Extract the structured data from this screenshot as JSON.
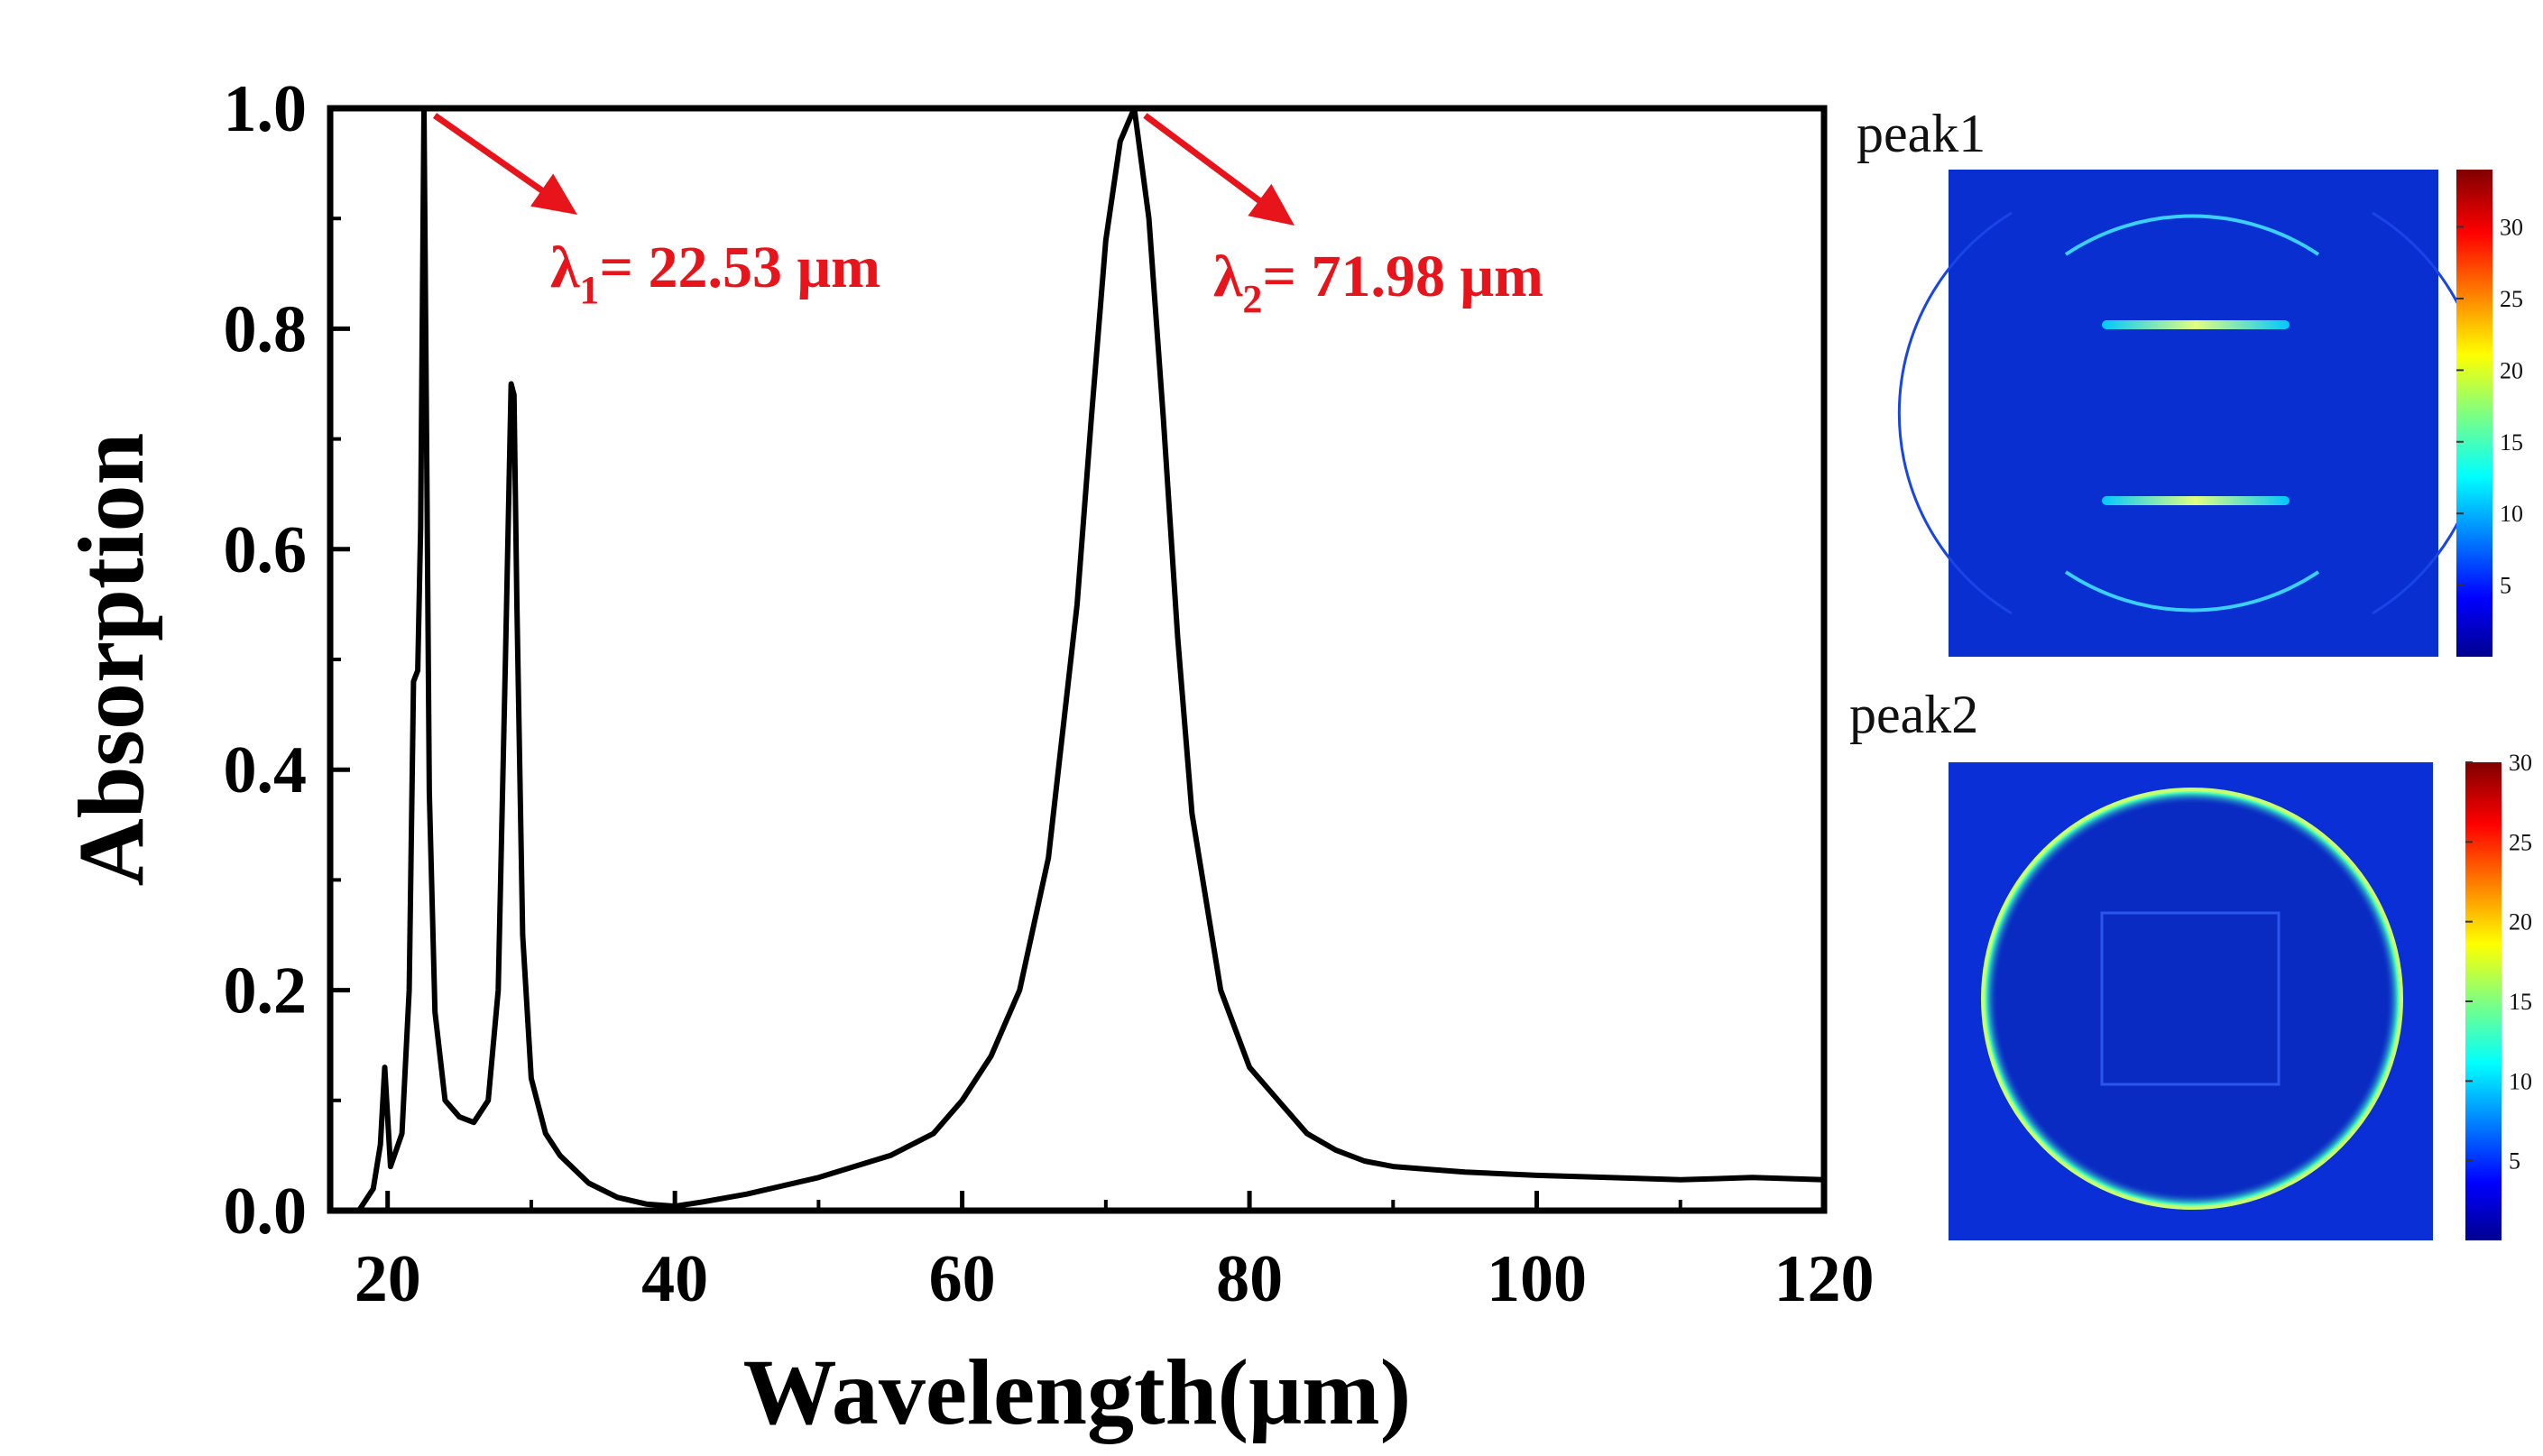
{
  "chart_data": {
    "type": "line",
    "xlabel": "Wavelength(μm)",
    "ylabel": "Absorption",
    "xlim": [
      16,
      120
    ],
    "ylim": [
      0,
      1.0
    ],
    "x_ticks": [
      "20",
      "40",
      "60",
      "80",
      "100",
      "120"
    ],
    "y_ticks": [
      "0.0",
      "0.2",
      "0.4",
      "0.6",
      "0.8",
      "1.0"
    ],
    "grid": false,
    "series": [
      {
        "x": [
          18,
          19,
          19.5,
          19.8,
          20.2,
          21,
          21.5,
          21.8,
          22.1,
          22.3,
          22.53,
          22.7,
          22.9,
          23.3,
          24,
          25,
          26,
          27,
          27.7,
          28.2,
          28.6,
          28.8,
          29,
          29.4,
          30,
          31,
          32,
          34,
          36,
          38,
          40,
          42,
          45,
          50,
          55,
          58,
          60,
          62,
          64,
          66,
          68,
          69,
          70,
          71,
          71.98,
          73,
          74,
          75,
          76,
          78,
          80,
          82,
          84,
          86,
          88,
          90,
          92,
          95,
          100,
          105,
          110,
          115,
          120
        ],
        "y": [
          0.0,
          0.02,
          0.06,
          0.13,
          0.04,
          0.07,
          0.2,
          0.48,
          0.49,
          0.62,
          1.0,
          0.72,
          0.38,
          0.18,
          0.1,
          0.085,
          0.08,
          0.1,
          0.2,
          0.5,
          0.75,
          0.74,
          0.55,
          0.25,
          0.12,
          0.07,
          0.05,
          0.025,
          0.012,
          0.006,
          0.004,
          0.008,
          0.015,
          0.03,
          0.05,
          0.07,
          0.1,
          0.14,
          0.2,
          0.32,
          0.55,
          0.72,
          0.88,
          0.97,
          1.0,
          0.9,
          0.72,
          0.52,
          0.36,
          0.2,
          0.13,
          0.1,
          0.07,
          0.055,
          0.045,
          0.04,
          0.038,
          0.035,
          0.032,
          0.03,
          0.028,
          0.03,
          0.028
        ]
      }
    ],
    "annotations": [
      {
        "symbol": "λ",
        "sub": "1",
        "text": "= 22.53 μm",
        "x": 22.53,
        "y": 1.0
      },
      {
        "symbol": "λ",
        "sub": "2",
        "text": "= 71.98 μm",
        "x": 71.98,
        "y": 1.0
      }
    ],
    "line_color": "#000000",
    "annotation_color": "#e8141b"
  },
  "insets": [
    {
      "title": "peak1",
      "colorbar_ticks": [
        "5",
        "10",
        "15",
        "20",
        "25",
        "30"
      ],
      "colorbar_max": 34
    },
    {
      "title": "peak2",
      "colorbar_ticks": [
        "5",
        "10",
        "15",
        "20",
        "25",
        "30"
      ],
      "colorbar_max": 30
    }
  ],
  "colormap": [
    "#00008f",
    "#0000ff",
    "#0080ff",
    "#00ffff",
    "#80ff80",
    "#ffff00",
    "#ff8000",
    "#ff0000",
    "#800000"
  ],
  "field_background": "#0a2fd6"
}
